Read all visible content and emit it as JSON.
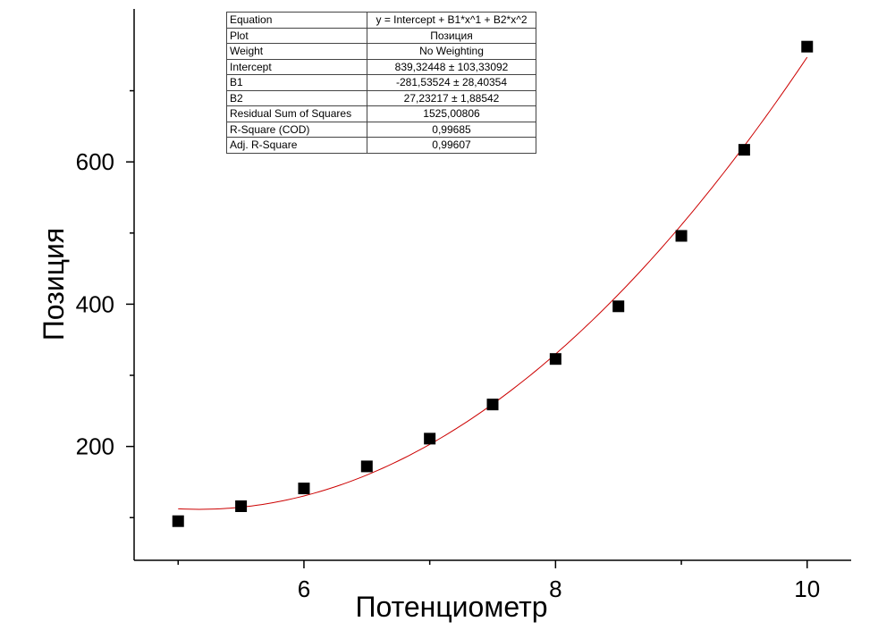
{
  "chart_data": {
    "type": "scatter",
    "title": "",
    "xlabel": "Потенциометр",
    "ylabel": "Позиция",
    "xlim": [
      4.65,
      10.35
    ],
    "ylim": [
      40,
      815
    ],
    "x_ticks": [
      6,
      8,
      10
    ],
    "y_ticks": [
      200,
      400,
      600
    ],
    "x_minor_ticks": [
      5,
      7,
      9
    ],
    "y_minor_ticks": [
      100,
      300,
      500,
      700
    ],
    "grid": false,
    "series": [
      {
        "marker": "square",
        "color": "#000000",
        "x": [
          5.0,
          5.5,
          6.0,
          6.5,
          7.0,
          7.5,
          8.0,
          8.5,
          9.0,
          9.5,
          10.0
        ],
        "y": [
          95,
          116,
          141,
          172,
          211,
          259,
          323,
          397,
          496,
          617,
          762
        ]
      }
    ],
    "fit": {
      "color": "#cc0000",
      "intercept": 839.32448,
      "b1": -281.53524,
      "b2": 27.23217,
      "x_range": [
        5.0,
        10.0
      ]
    },
    "fit_table": [
      {
        "key": "Equation",
        "value": "y = Intercept + B1*x^1 + B2*x^2"
      },
      {
        "key": "Plot",
        "value": "Позиция"
      },
      {
        "key": "Weight",
        "value": "No Weighting"
      },
      {
        "key": "Intercept",
        "value": "839,32448 ± 103,33092"
      },
      {
        "key": "B1",
        "value": "-281,53524 ± 28,40354"
      },
      {
        "key": "B2",
        "value": "27,23217 ± 1,88542"
      },
      {
        "key": "Residual Sum of Squares",
        "value": "1525,00806"
      },
      {
        "key": "R-Square (COD)",
        "value": "0,99685"
      },
      {
        "key": "Adj. R-Square",
        "value": "0,99607"
      }
    ]
  }
}
